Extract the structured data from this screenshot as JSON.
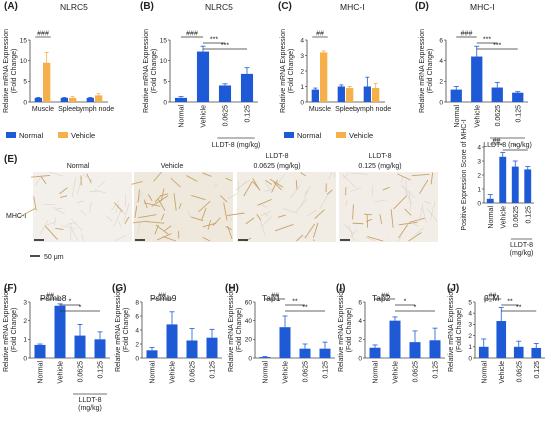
{
  "colors": {
    "normal": "#1f5ad6",
    "vehicle": "#f5b04c",
    "text": "#222222",
    "tissue_bg": "#f2efe9",
    "stain": "#c8a36a"
  },
  "legends": {
    "a": {
      "normal": "Normal",
      "vehicle": "Vehicle"
    },
    "c": {
      "normal": "Normal",
      "vehicle": "Vehicle"
    }
  },
  "panel_e": {
    "letter": "(E)",
    "row_label": "MHC-I",
    "scale_label": "50 μm",
    "images": [
      {
        "line1": "Normal",
        "line2": ""
      },
      {
        "line1": "Vehicle",
        "line2": ""
      },
      {
        "line1": "LLDT-8",
        "line2": "0.0625 (mg/kg)"
      },
      {
        "line1": "LLDT-8",
        "line2": "0.125 (mg/kg)"
      }
    ]
  },
  "chart_data": [
    {
      "id": "A",
      "type": "bar",
      "title": "NLRC5",
      "ylabel": "Relative mRNA Expression (Fold Change)",
      "ylim": [
        0,
        15
      ],
      "yticks": [
        0,
        5,
        10,
        15
      ],
      "categories": [
        "Muscle",
        "Spleen",
        "Lymph node"
      ],
      "series": [
        {
          "name": "Normal",
          "values": [
            1.0,
            1.0,
            1.0
          ],
          "errors": [
            0.1,
            0.1,
            0.1
          ]
        },
        {
          "name": "Vehicle",
          "values": [
            9.5,
            1.0,
            1.6
          ],
          "errors": [
            2.5,
            0.3,
            0.4
          ]
        }
      ],
      "annotations": [
        {
          "text": "###",
          "between": [
            "Muscle",
            "Muscle"
          ]
        }
      ]
    },
    {
      "id": "B",
      "type": "bar",
      "title": "NLRC5",
      "ylabel": "Relative mRNA Expression (Fold Change)",
      "ylim": [
        0,
        15
      ],
      "yticks": [
        0,
        5,
        10,
        15
      ],
      "categories": [
        "Normal",
        "Vehicle",
        "0.0625",
        "0.125"
      ],
      "group_label": "LLDT-8 (mg/kg)",
      "values": [
        1.0,
        12.2,
        4.0,
        6.8
      ],
      "errors": [
        0.3,
        1.3,
        0.4,
        1.5
      ],
      "annotations": [
        {
          "text": "###",
          "from": 0,
          "to": 1
        },
        {
          "text": "***",
          "from": 1,
          "to": 2
        },
        {
          "text": "***",
          "from": 1,
          "to": 3
        }
      ]
    },
    {
      "id": "C",
      "type": "bar",
      "title": "MHC-I",
      "ylabel": "Relative mRNA Expression (Fold Change)",
      "ylim": [
        0,
        4
      ],
      "yticks": [
        0,
        1,
        2,
        3,
        4
      ],
      "categories": [
        "Muscle",
        "Spleen",
        "Lymph node"
      ],
      "series": [
        {
          "name": "Normal",
          "values": [
            0.8,
            1.0,
            1.0
          ],
          "errors": [
            0.1,
            0.1,
            0.6
          ]
        },
        {
          "name": "Vehicle",
          "values": [
            3.2,
            0.9,
            0.9
          ],
          "errors": [
            0.1,
            0.1,
            0.3
          ]
        }
      ],
      "annotations": [
        {
          "text": "##",
          "between": [
            "Muscle",
            "Muscle"
          ]
        }
      ]
    },
    {
      "id": "D",
      "type": "bar",
      "title": "MHC-I",
      "ylabel": "Relative mRNA Expression (Fold Change)",
      "ylim": [
        0,
        6
      ],
      "yticks": [
        0,
        2,
        4,
        6
      ],
      "categories": [
        "Normal",
        "Vehicle",
        "0.0625",
        "0.125"
      ],
      "group_label": "LLDT-8 (mg/kg)",
      "values": [
        1.2,
        4.4,
        1.4,
        0.9
      ],
      "errors": [
        0.3,
        1.0,
        0.5,
        0.1
      ],
      "annotations": [
        {
          "text": "###",
          "from": 0,
          "to": 1
        },
        {
          "text": "***",
          "from": 1,
          "to": 2
        },
        {
          "text": "***",
          "from": 1,
          "to": 3
        }
      ]
    },
    {
      "id": "E",
      "type": "bar",
      "title": "",
      "ylabel": "Positive Expression Score of MHC-I",
      "ylim": [
        0,
        4
      ],
      "yticks": [
        0,
        1,
        2,
        3,
        4
      ],
      "categories": [
        "Normal",
        "Vehicle",
        "0.0625",
        "0.125"
      ],
      "group_label": "LLDT-8 (mg/kg)",
      "values": [
        0.3,
        3.3,
        2.6,
        2.4
      ],
      "errors": [
        0.3,
        0.3,
        0.4,
        0.2
      ],
      "annotations": [
        {
          "text": "##",
          "from": 0,
          "to": 1
        },
        {
          "text": "*",
          "from": 1,
          "to": 3
        }
      ]
    },
    {
      "id": "F",
      "type": "bar",
      "title": "Psmb8",
      "ylabel": "Relative mRNA Expression (Fold Change)",
      "ylim": [
        0,
        3
      ],
      "yticks": [
        0,
        1,
        2,
        3
      ],
      "categories": [
        "Normal",
        "Vehicle",
        "0.0625",
        "0.125"
      ],
      "group_label": "LLDT-8 (mg/kg)",
      "values": [
        0.7,
        2.8,
        1.2,
        1.0
      ],
      "errors": [
        0.05,
        0.1,
        0.6,
        0.4
      ],
      "annotations": [
        {
          "text": "##",
          "from": 0,
          "to": 1
        },
        {
          "text": "*",
          "from": 1,
          "to": 2
        },
        {
          "text": "*",
          "from": 1,
          "to": 3
        }
      ]
    },
    {
      "id": "G",
      "type": "bar",
      "title": "Psmb9",
      "ylabel": "Relative mRNA Expression (Fold Change)",
      "ylim": [
        0,
        8
      ],
      "yticks": [
        0,
        2,
        4,
        6,
        8
      ],
      "categories": [
        "Normal",
        "Vehicle",
        "0.0625",
        "0.125"
      ],
      "group_label": "",
      "values": [
        1.1,
        4.8,
        2.5,
        2.9
      ],
      "errors": [
        0.4,
        1.8,
        1.7,
        1.2
      ],
      "annotations": [
        {
          "text": "##",
          "from": 0,
          "to": 1
        }
      ]
    },
    {
      "id": "H",
      "type": "bar",
      "title": "Tap1",
      "ylabel": "Relative mRNA Expression (Fold Change)",
      "ylim": [
        0,
        60
      ],
      "yticks": [
        0,
        20,
        40,
        60
      ],
      "categories": [
        "Normal",
        "Vehicle",
        "0.0625",
        "0.125"
      ],
      "group_label": "",
      "values": [
        1.0,
        33,
        10,
        10
      ],
      "errors": [
        0.5,
        12,
        5,
        7
      ],
      "annotations": [
        {
          "text": "##",
          "from": 0,
          "to": 1
        },
        {
          "text": "**",
          "from": 1,
          "to": 2
        },
        {
          "text": "**",
          "from": 1,
          "to": 3
        }
      ]
    },
    {
      "id": "I",
      "type": "bar",
      "title": "Tap2",
      "ylabel": "Relative mRNA Expression (Fold Change)",
      "ylim": [
        0,
        6
      ],
      "yticks": [
        0,
        2,
        4,
        6
      ],
      "categories": [
        "Normal",
        "Vehicle",
        "0.0625",
        "0.125"
      ],
      "group_label": "",
      "values": [
        1.1,
        4.0,
        1.7,
        1.9
      ],
      "errors": [
        0.3,
        0.4,
        1.2,
        1.3
      ],
      "annotations": [
        {
          "text": "##",
          "from": 0,
          "to": 1
        },
        {
          "text": "*",
          "from": 1,
          "to": 2
        },
        {
          "text": "*",
          "from": 1,
          "to": 3
        }
      ]
    },
    {
      "id": "J",
      "type": "bar",
      "title": "β₂M",
      "ylabel": "Relative mRNA Expression (Fold Change)",
      "ylim": [
        0,
        5
      ],
      "yticks": [
        0,
        1,
        2,
        3,
        4,
        5
      ],
      "categories": [
        "Normal",
        "Vehicle",
        "0.0625",
        "0.125"
      ],
      "group_label": "",
      "values": [
        1.0,
        3.3,
        1.0,
        0.9
      ],
      "errors": [
        0.7,
        1.2,
        0.5,
        0.4
      ],
      "annotations": [
        {
          "text": "##",
          "from": 0,
          "to": 1
        },
        {
          "text": "**",
          "from": 1,
          "to": 2
        },
        {
          "text": "**",
          "from": 1,
          "to": 3
        }
      ]
    }
  ]
}
